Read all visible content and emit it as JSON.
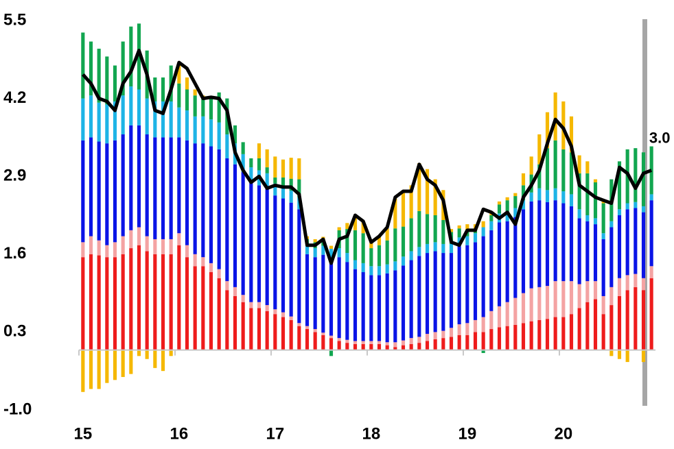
{
  "chart_data": {
    "type": "bar",
    "stacked": true,
    "categories": [
      "15",
      null,
      null,
      null,
      null,
      null,
      null,
      null,
      null,
      null,
      null,
      null,
      "16",
      null,
      null,
      null,
      null,
      null,
      null,
      null,
      null,
      null,
      null,
      null,
      "17",
      null,
      null,
      null,
      null,
      null,
      null,
      null,
      null,
      null,
      null,
      null,
      "18",
      null,
      null,
      null,
      null,
      null,
      null,
      null,
      null,
      null,
      null,
      null,
      "19",
      null,
      null,
      null,
      null,
      null,
      null,
      null,
      null,
      null,
      null,
      null,
      "20",
      null,
      null,
      null,
      null,
      null,
      null,
      null,
      null,
      null,
      null,
      null
    ],
    "ylim": [
      -1.0,
      5.5
    ],
    "yticks": [
      {
        "value": -1,
        "label": "-1.0"
      },
      0.3,
      1.6,
      2.9,
      4.2,
      5.5
    ],
    "series": [
      {
        "color": "#ee1c1c",
        "values": [
          1.55,
          1.6,
          1.58,
          1.55,
          1.55,
          1.6,
          1.7,
          1.75,
          1.65,
          1.6,
          1.6,
          1.6,
          1.75,
          1.55,
          1.4,
          1.4,
          1.3,
          1.2,
          1.0,
          0.9,
          0.8,
          0.7,
          0.7,
          0.65,
          0.6,
          0.55,
          0.5,
          0.4,
          0.35,
          0.3,
          0.25,
          0.2,
          0.15,
          0.12,
          0.1,
          0.1,
          0.1,
          0.1,
          0.08,
          0.05,
          0.08,
          0.1,
          0.12,
          0.15,
          0.18,
          0.2,
          0.22,
          0.25,
          0.25,
          0.3,
          0.3,
          0.35,
          0.38,
          0.4,
          0.42,
          0.45,
          0.48,
          0.5,
          0.52,
          0.55,
          0.55,
          0.6,
          0.7,
          0.8,
          0.85,
          0.6,
          0.75,
          0.9,
          1.0,
          1.05,
          1.0,
          1.2
        ]
      },
      {
        "color": "#f4a3a3",
        "values": [
          0.25,
          0.3,
          0.25,
          0.2,
          0.25,
          0.3,
          0.3,
          0.3,
          0.25,
          0.25,
          0.25,
          0.25,
          0.2,
          0.2,
          0.2,
          0.15,
          0.15,
          0.15,
          0.15,
          0.15,
          0.12,
          0.1,
          0.1,
          0.1,
          0.08,
          0.08,
          0.06,
          0.05,
          0.05,
          0.05,
          0.04,
          0.04,
          0.05,
          0.05,
          0.05,
          0.05,
          0.05,
          0.05,
          0.05,
          0.08,
          0.08,
          0.1,
          0.1,
          0.12,
          0.12,
          0.12,
          0.15,
          0.18,
          0.2,
          0.2,
          0.25,
          0.3,
          0.35,
          0.4,
          0.45,
          0.5,
          0.55,
          0.55,
          0.55,
          0.6,
          0.6,
          0.55,
          0.4,
          0.35,
          0.3,
          0.3,
          0.3,
          0.3,
          0.25,
          0.22,
          0.2,
          0.2
        ]
      },
      {
        "color": "#0a14e6",
        "values": [
          1.7,
          1.65,
          1.65,
          1.7,
          1.7,
          1.7,
          1.75,
          1.7,
          1.7,
          1.7,
          1.7,
          1.7,
          1.6,
          1.75,
          1.85,
          1.9,
          1.95,
          2.0,
          2.05,
          2.05,
          2.05,
          2.0,
          1.95,
          1.95,
          1.9,
          1.9,
          1.9,
          1.9,
          1.2,
          1.2,
          1.3,
          1.3,
          1.35,
          1.3,
          1.2,
          1.15,
          1.1,
          1.1,
          1.15,
          1.2,
          1.25,
          1.3,
          1.35,
          1.35,
          1.35,
          1.3,
          1.25,
          1.3,
          1.3,
          1.3,
          1.35,
          1.35,
          1.4,
          1.35,
          1.35,
          1.4,
          1.45,
          1.45,
          1.4,
          1.35,
          1.3,
          1.25,
          1.1,
          1.0,
          0.95,
          0.95,
          1.0,
          1.05,
          1.1,
          1.1,
          1.1,
          1.1
        ]
      },
      {
        "color": "#1eb4e6",
        "values": [
          0.7,
          0.7,
          0.65,
          0.65,
          0.65,
          0.65,
          0.65,
          0.6,
          0.6,
          0.6,
          0.6,
          0.6,
          0.5,
          0.5,
          0.45,
          0.45,
          0.45,
          0.45,
          0.4,
          0.35,
          0.3,
          0.25,
          0.25,
          0.25,
          0.2,
          0.2,
          0.2,
          0.2,
          0.15,
          0.15,
          0.15,
          0.15,
          0.15,
          0.15,
          0.15,
          0.15,
          0.15,
          0.15,
          0.15,
          0.15,
          0.15,
          0.15,
          0.15,
          0.15,
          0.15,
          0.15,
          0.15,
          0.15,
          0.15,
          0.15,
          0.15,
          0.15,
          0.15,
          0.15,
          0.15,
          0.15,
          0.15,
          0.2,
          0.2,
          0.2,
          0.2,
          0.2,
          0.15,
          0.1,
          0.1,
          0.1,
          0.1,
          0.1,
          0.1,
          0.1,
          0.1,
          0.1
        ]
      },
      {
        "color": "#12a650",
        "values": [
          1.1,
          0.9,
          0.9,
          0.8,
          0.6,
          0.9,
          1.0,
          1.1,
          0.8,
          0.4,
          0.4,
          0.6,
          0.4,
          0.35,
          0.35,
          0.3,
          0.35,
          0.5,
          0.6,
          0.3,
          0.2,
          0.15,
          0.2,
          0.1,
          0.1,
          0.15,
          0.2,
          0.3,
          0.1,
          0.1,
          0.1,
          -0.1,
          0.3,
          0.4,
          0.5,
          0.5,
          0.3,
          0.35,
          0.4,
          0.55,
          0.5,
          0.55,
          0.6,
          0.5,
          0.45,
          0.4,
          0.2,
          0.15,
          0.1,
          0.05,
          -0.05,
          0.1,
          0.15,
          0.2,
          0.2,
          0.25,
          0.3,
          0.4,
          0.7,
          0.8,
          0.7,
          0.7,
          0.6,
          0.7,
          0.6,
          0.5,
          0.7,
          0.8,
          0.9,
          0.9,
          0.9,
          0.8
        ]
      },
      {
        "color": "#f5b800",
        "values": [
          -0.7,
          -0.65,
          -0.65,
          -0.55,
          -0.5,
          -0.45,
          -0.4,
          -0.1,
          -0.15,
          -0.3,
          -0.35,
          -0.1,
          0.35,
          0.2,
          0.1,
          0.05,
          0,
          0,
          0,
          0,
          0,
          0,
          0.25,
          0.3,
          0.35,
          0.3,
          0.35,
          0.35,
          0.05,
          0.05,
          0.05,
          0.05,
          0.05,
          0.1,
          0.25,
          0.2,
          0.1,
          0.15,
          0.2,
          0.5,
          0.6,
          0.55,
          0.8,
          0.75,
          0.6,
          0.5,
          0.05,
          0.05,
          0.1,
          0.1,
          0.1,
          0.05,
          0.05,
          0.05,
          0.05,
          0.2,
          0.3,
          0.5,
          0.6,
          0.8,
          0.8,
          0.6,
          0.3,
          0.2,
          0.05,
          0.05,
          -0.1,
          -0.15,
          -0.2,
          0,
          -0.2,
          0
        ]
      },
      {
        "type": "line",
        "color": "#000000",
        "values": [
          4.6,
          4.45,
          4.2,
          4.15,
          4.0,
          4.45,
          4.65,
          5.0,
          4.6,
          4.0,
          3.95,
          4.35,
          4.8,
          4.7,
          4.45,
          4.2,
          4.22,
          4.2,
          4.0,
          3.3,
          3.0,
          2.8,
          2.9,
          2.7,
          2.75,
          2.72,
          2.72,
          2.6,
          1.75,
          1.75,
          1.85,
          1.45,
          1.85,
          1.9,
          2.25,
          2.15,
          1.8,
          1.9,
          2.05,
          2.55,
          2.65,
          2.65,
          3.1,
          2.85,
          2.75,
          2.5,
          1.8,
          1.75,
          2.0,
          2.0,
          2.35,
          2.3,
          2.2,
          2.3,
          2.1,
          2.55,
          2.75,
          3.0,
          3.45,
          3.85,
          3.7,
          3.4,
          2.75,
          2.65,
          2.55,
          2.5,
          2.45,
          3.05,
          2.95,
          2.7,
          2.95,
          3.0
        ],
        "end_label": "3.0"
      }
    ]
  }
}
